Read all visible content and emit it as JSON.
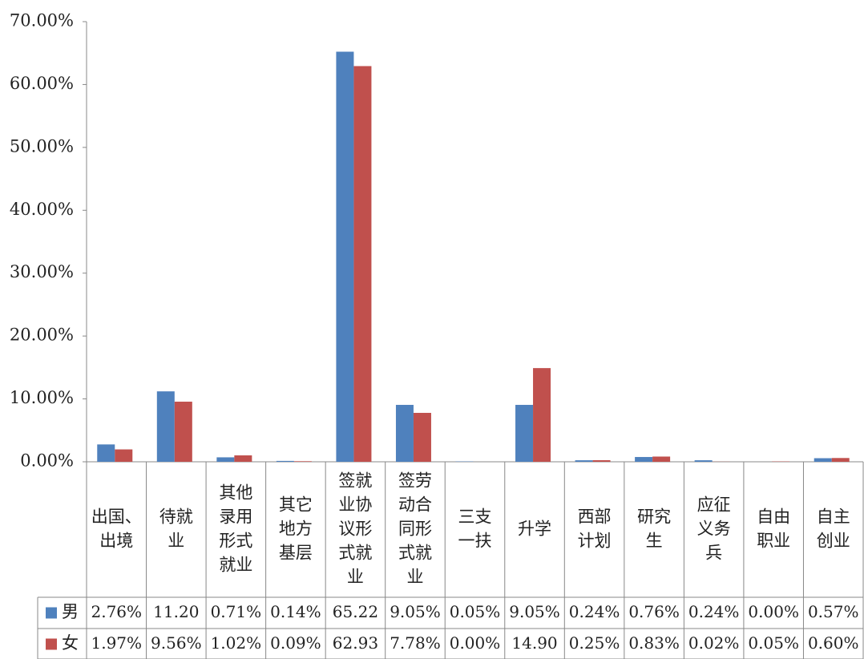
{
  "chart_data": {
    "type": "bar",
    "categories": [
      "出国、出境",
      "待就业",
      "其他录用形式就业",
      "其它地方基层",
      "签就业协议形式就业",
      "签劳动合同形式就业",
      "三支一扶",
      "升学",
      "西部计划",
      "研究生",
      "应征义务兵",
      "自由职业",
      "自主创业"
    ],
    "series": [
      {
        "name": "男",
        "color": "#4f81bd",
        "values": [
          2.76,
          11.2,
          0.71,
          0.14,
          65.22,
          9.05,
          0.05,
          9.05,
          0.24,
          0.76,
          0.24,
          0.0,
          0.57
        ],
        "value_labels": [
          "2.76%",
          "11.20",
          "0.71%",
          "0.14%",
          "65.22",
          "9.05%",
          "0.05%",
          "9.05%",
          "0.24%",
          "0.76%",
          "0.24%",
          "0.00%",
          "0.57%"
        ]
      },
      {
        "name": "女",
        "color": "#c0504d",
        "values": [
          1.97,
          9.56,
          1.02,
          0.09,
          62.93,
          7.78,
          0.0,
          14.9,
          0.25,
          0.83,
          0.02,
          0.05,
          0.6
        ],
        "value_labels": [
          "1.97%",
          "9.56%",
          "1.02%",
          "0.09%",
          "62.93",
          "7.78%",
          "0.00%",
          "14.90",
          "0.25%",
          "0.83%",
          "0.02%",
          "0.05%",
          "0.60%"
        ]
      }
    ],
    "ylim": [
      0,
      70
    ],
    "yticks": [
      {
        "value": 0,
        "label": "0.00%"
      },
      {
        "value": 10,
        "label": "10.00%"
      },
      {
        "value": 20,
        "label": "20.00%"
      },
      {
        "value": 30,
        "label": "30.00%"
      },
      {
        "value": 40,
        "label": "40.00%"
      },
      {
        "value": 50,
        "label": "50.00%"
      },
      {
        "value": 60,
        "label": "60.00%"
      },
      {
        "value": 70,
        "label": "70.00%"
      }
    ],
    "grid": false
  }
}
